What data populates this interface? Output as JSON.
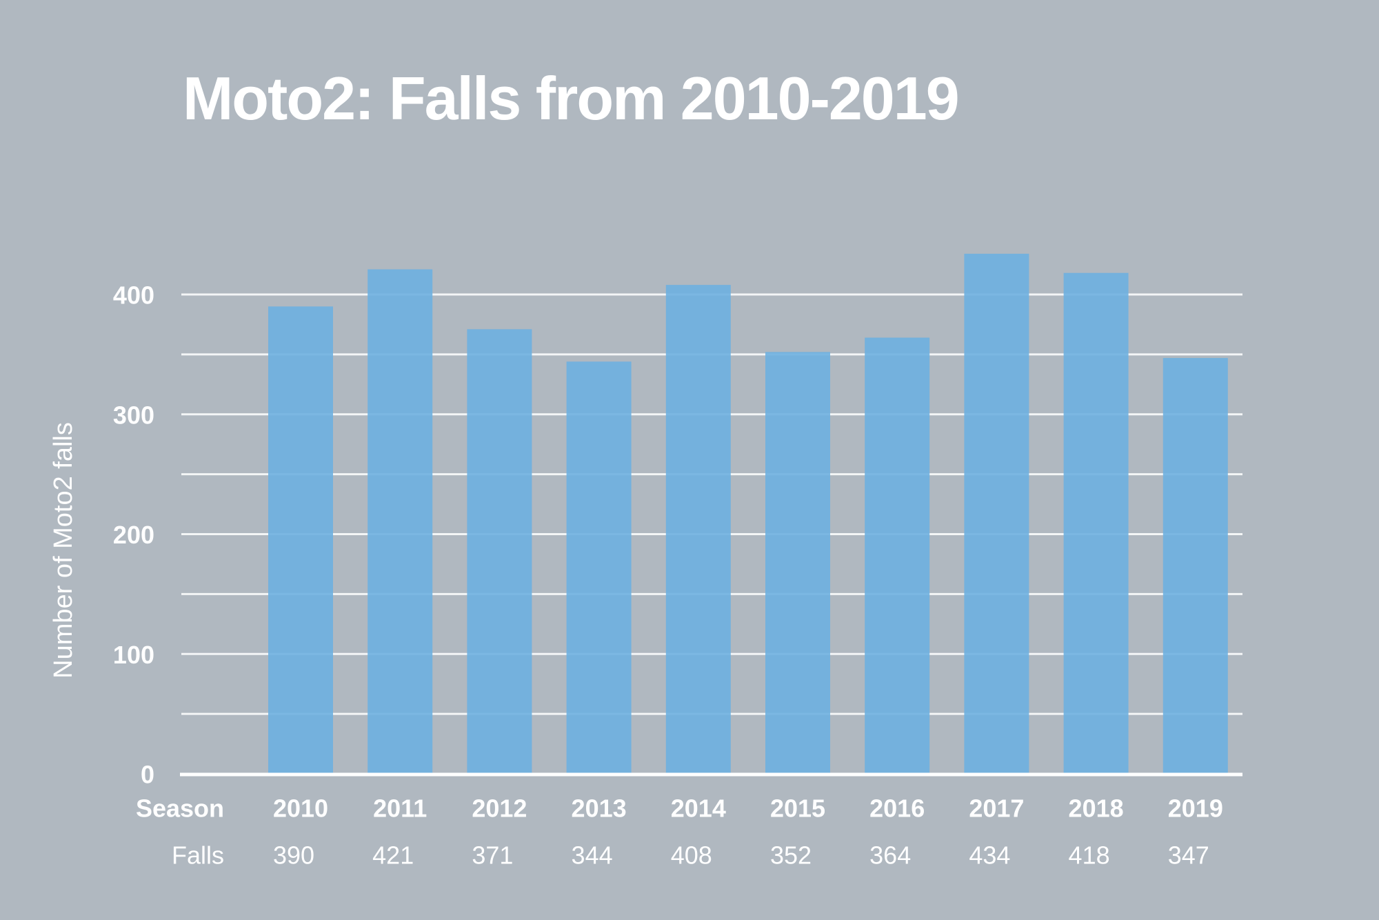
{
  "chart_data": {
    "type": "bar",
    "title": "Moto2: Falls from 2010-2019",
    "ylabel": "Number of Moto2 falls",
    "xlabel": "",
    "row_labels": {
      "category_row": "Season",
      "value_row": "Falls"
    },
    "categories": [
      "2010",
      "2011",
      "2012",
      "2013",
      "2014",
      "2015",
      "2016",
      "2017",
      "2018",
      "2019"
    ],
    "values": [
      390,
      421,
      371,
      344,
      408,
      352,
      364,
      434,
      418,
      347
    ],
    "value_labels": [
      "390",
      "421",
      "371",
      "344",
      "408",
      "352",
      "364",
      "434",
      "418",
      "347"
    ],
    "ylim": [
      0,
      450
    ],
    "yticks": [
      0,
      100,
      200,
      300,
      400
    ],
    "ytick_labels": [
      "0",
      "100",
      "200",
      "300",
      "400"
    ],
    "minor_gridlines": [
      50,
      150,
      250,
      350
    ],
    "grid": true,
    "legend": "none",
    "colors": {
      "background": "#b0b8c0",
      "bar": "#6eb0e0",
      "grid": "#ffffff",
      "text": "#ffffff"
    }
  }
}
